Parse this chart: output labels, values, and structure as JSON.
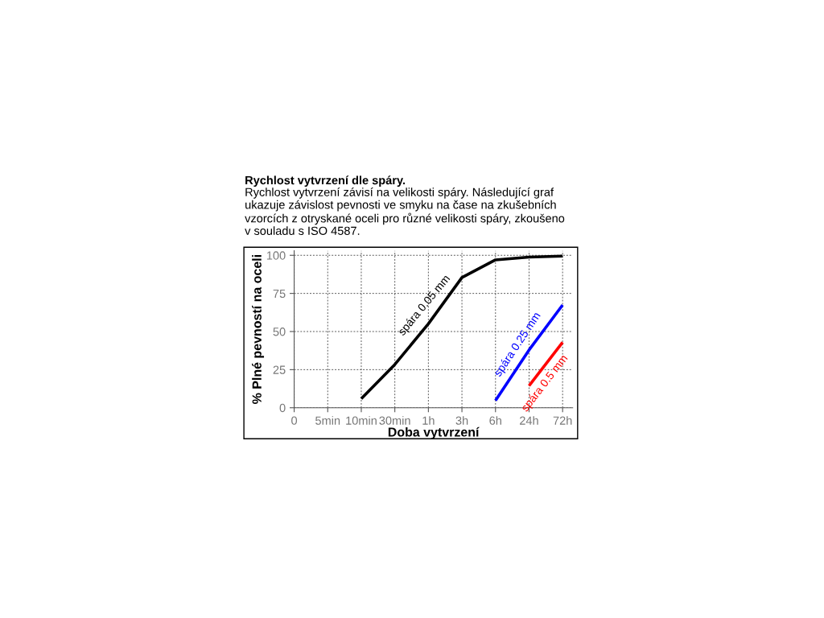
{
  "chart_data": {
    "type": "line",
    "title": "Rychlost vytvrzení dle spáry.",
    "subtitle": "Rychlost vytvrzení závisí na velikosti spáry. Následující graf\nukazuje závislost pevnosti ve smyku na čase na zkušebních\nvzorcích z otryskané oceli pro různé velikosti spáry, zkoušeno\nv souladu s ISO 4587.",
    "xlabel": "Doba vytvrzení",
    "ylabel": "% Plné pevností na oceli",
    "categories": [
      "0",
      "5min",
      "10min",
      "30min",
      "1h",
      "3h",
      "6h",
      "24h",
      "72h"
    ],
    "series": [
      {
        "color": "#000000",
        "values": [
          null,
          null,
          5.9,
          28.4,
          55.1,
          85.4,
          97,
          98.8,
          99.5
        ]
      },
      {
        "color": "#0000ff",
        "values": [
          null,
          null,
          null,
          null,
          null,
          null,
          4.8,
          37.9,
          67.4
        ]
      },
      {
        "color": "#ff0000",
        "values": [
          null,
          null,
          null,
          null,
          null,
          null,
          null,
          14.4,
          42.9
        ]
      }
    ],
    "annotations": [
      "spára 0.05 mm",
      "spára 0.25 mm",
      "spára 0.5 mm"
    ],
    "ylim": [
      0,
      103
    ],
    "yticks": [
      0,
      25,
      50,
      75,
      100
    ],
    "grid": true,
    "line_style": "solid"
  }
}
